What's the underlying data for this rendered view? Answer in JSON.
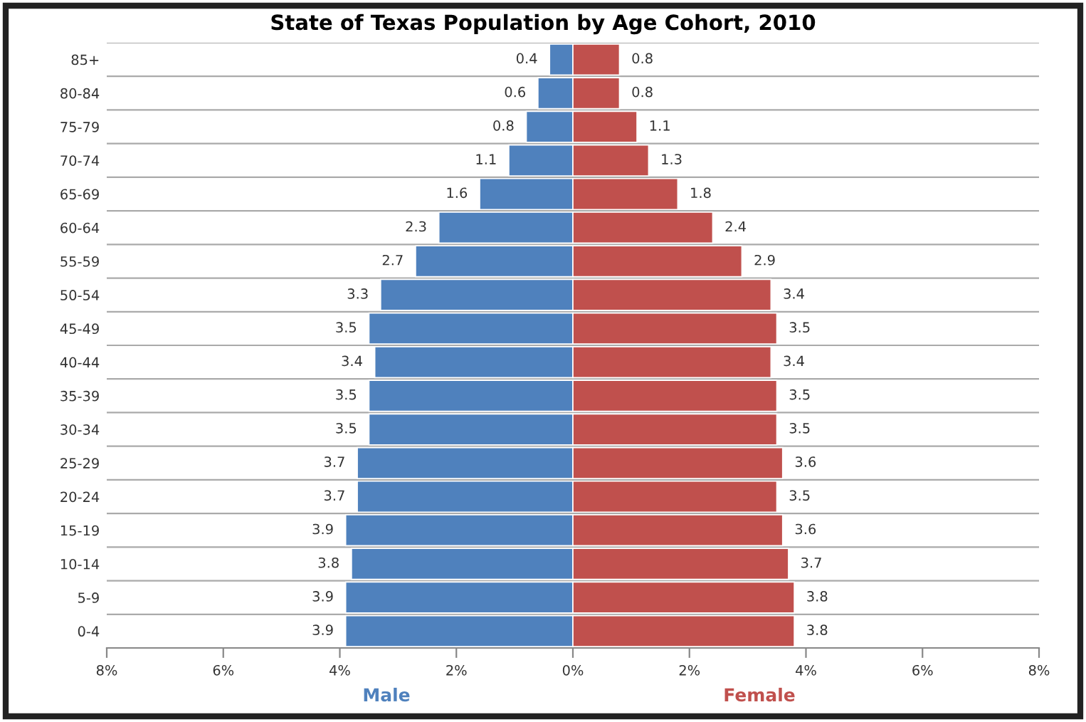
{
  "chart_data": {
    "type": "bar",
    "orientation": "horizontal",
    "title": "State of Texas Population by Age Cohort, 2010",
    "categories": [
      "85+",
      "80-84",
      "75-79",
      "70-74",
      "65-69",
      "60-64",
      "55-59",
      "50-54",
      "45-49",
      "40-44",
      "35-39",
      "30-34",
      "25-29",
      "20-24",
      "15-19",
      "10-14",
      "5-9",
      "0-4"
    ],
    "series": [
      {
        "name": "Male",
        "color": "#4f81bd",
        "values": [
          0.4,
          0.6,
          0.8,
          1.1,
          1.6,
          2.3,
          2.7,
          3.3,
          3.5,
          3.4,
          3.5,
          3.5,
          3.7,
          3.7,
          3.9,
          3.8,
          3.9,
          3.9
        ],
        "base": [
          -0.4,
          -0.6,
          -0.8,
          -1.1,
          -1.6,
          -2.3,
          -2.7,
          -3.3,
          -3.5,
          -3.4,
          -3.5,
          -3.5,
          -3.7,
          -3.7,
          -3.9,
          -3.8,
          -3.9,
          -3.9
        ],
        "value_labels": [
          "0.4",
          "0.6",
          "0.8",
          "1.1",
          "1.6",
          "2.3",
          "2.7",
          "3.3",
          "3.5",
          "3.4",
          "3.5",
          "3.5",
          "3.7",
          "3.7",
          "3.9",
          "3.8",
          "3.9",
          "3.9"
        ]
      },
      {
        "name": "Female",
        "color": "#c0504d",
        "values": [
          0.8,
          0.8,
          1.1,
          1.3,
          1.8,
          2.4,
          2.9,
          3.4,
          3.5,
          3.4,
          3.5,
          3.5,
          3.6,
          3.5,
          3.6,
          3.7,
          3.8,
          3.8
        ],
        "value_labels": [
          "0.8",
          "0.8",
          "1.1",
          "1.3",
          "1.8",
          "2.4",
          "2.9",
          "3.4",
          "3.5",
          "3.4",
          "3.5",
          "3.5",
          "3.6",
          "3.5",
          "3.6",
          "3.7",
          "3.8",
          "3.8"
        ]
      }
    ],
    "xlim": [
      -8,
      8
    ],
    "xticks": [
      {
        "value": -8,
        "label": "8%"
      },
      {
        "value": -6,
        "label": "6%"
      },
      {
        "value": -4,
        "label": "4%"
      },
      {
        "value": -2,
        "label": "2%"
      },
      {
        "value": 0,
        "label": "0%"
      },
      {
        "value": 2,
        "label": "2%"
      },
      {
        "value": 4,
        "label": "4%"
      },
      {
        "value": 6,
        "label": "6%"
      },
      {
        "value": 8,
        "label": "8%"
      }
    ],
    "grid": "y",
    "legend": false
  }
}
